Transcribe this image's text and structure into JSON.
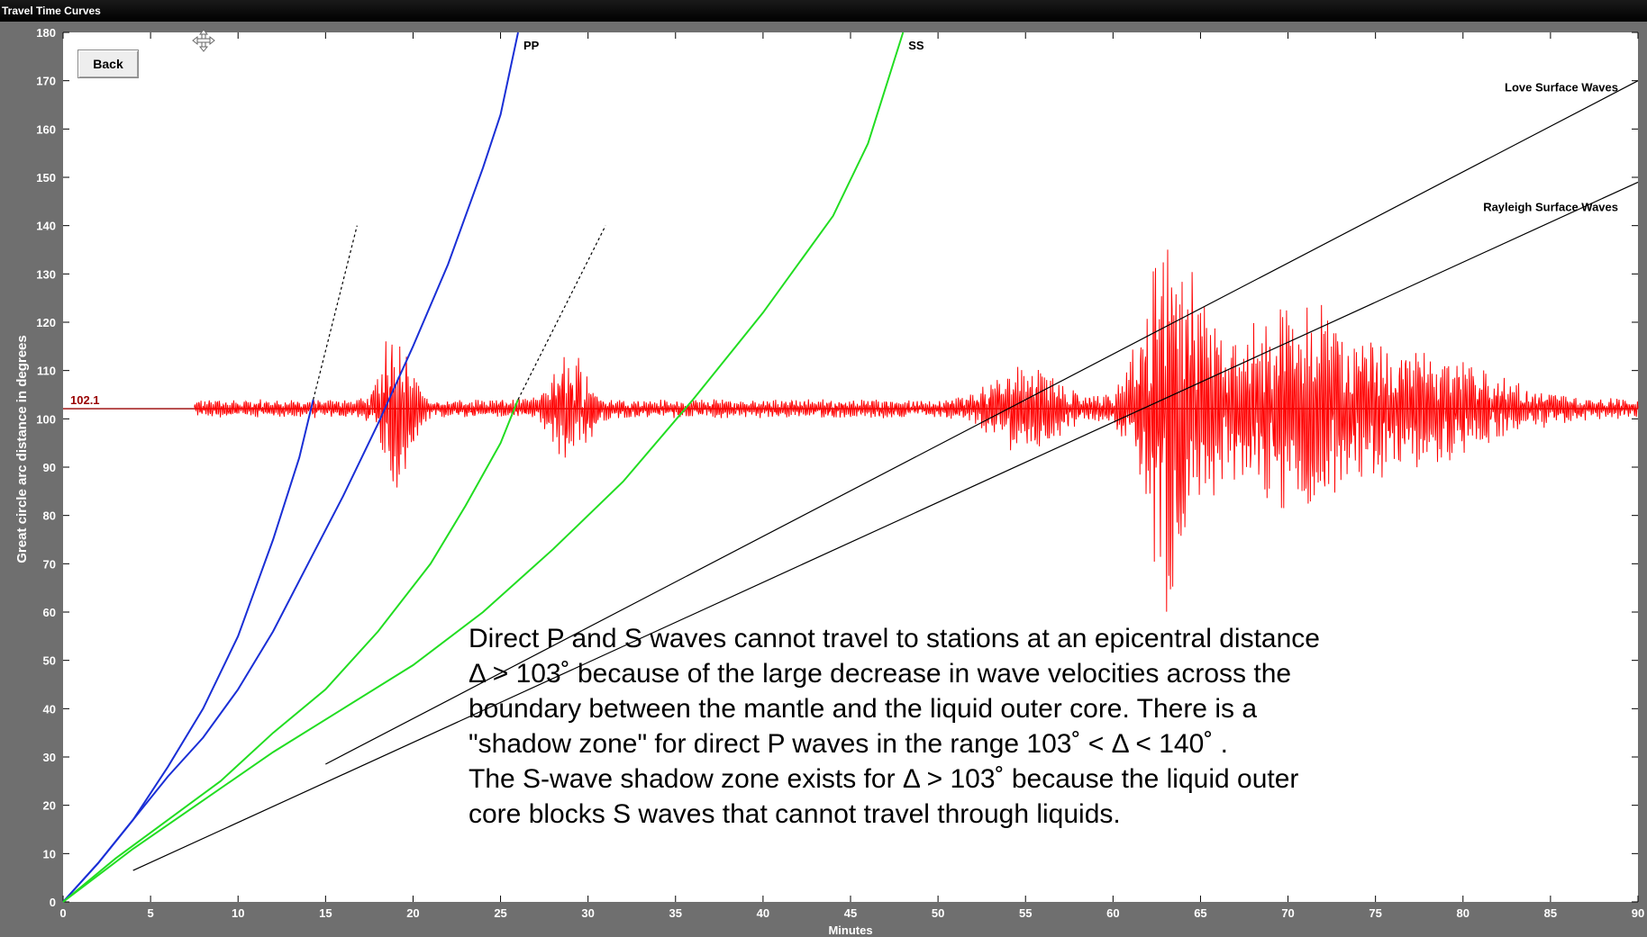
{
  "window": {
    "title": "Travel Time Curves"
  },
  "toolbar": {
    "back_label": "Back"
  },
  "icons": {
    "move": "move-icon"
  },
  "annotation": {
    "lines": [
      "Direct P and S waves cannot travel to stations at an epicentral distance",
      "Δ > 103˚   because of the large decrease in wave velocities across the",
      "boundary between the mantle and the liquid outer core. There is a",
      "\"shadow zone\" for direct P waves in the range 103˚   < Δ < 140˚  .",
      "The S-wave shadow zone exists for Δ > 103˚   because the liquid outer",
      "core blocks S waves that cannot travel through liquids."
    ]
  },
  "colors": {
    "p_waves": "#1a2fd6",
    "s_waves": "#22dd22",
    "surface_waves": "#000000",
    "seismogram": "#ff0000",
    "station_line": "#990000",
    "frame": "#6f6f6f"
  },
  "chart_data": {
    "type": "line",
    "title": "",
    "xlabel": "Minutes",
    "ylabel": "Great circle arc distance in degrees",
    "xlim": [
      0,
      90
    ],
    "ylim": [
      0,
      180
    ],
    "xticks": [
      "0",
      "5",
      "10",
      "15",
      "20",
      "25",
      "30",
      "35",
      "40",
      "45",
      "50",
      "55",
      "60",
      "65",
      "70",
      "75",
      "80",
      "85",
      "90"
    ],
    "yticks": [
      "0",
      "10",
      "20",
      "30",
      "40",
      "50",
      "60",
      "70",
      "80",
      "90",
      "100",
      "110",
      "120",
      "130",
      "140",
      "150",
      "160",
      "170",
      "180"
    ],
    "station": {
      "distance_label": "102.1",
      "distance": 102.1
    },
    "series": [
      {
        "name": "",
        "kind": "P",
        "points": [
          [
            0,
            0
          ],
          [
            2,
            8
          ],
          [
            4,
            17
          ],
          [
            6,
            28
          ],
          [
            8,
            40
          ],
          [
            10,
            55
          ],
          [
            12,
            75
          ],
          [
            13.5,
            92
          ],
          [
            14.3,
            104
          ]
        ]
      },
      {
        "name": "PP",
        "kind": "P",
        "points": [
          [
            0,
            0
          ],
          [
            2,
            8
          ],
          [
            4,
            17
          ],
          [
            6,
            26
          ],
          [
            8,
            34
          ],
          [
            10,
            44
          ],
          [
            12,
            56
          ],
          [
            14,
            70
          ],
          [
            16,
            84
          ],
          [
            18,
            99
          ],
          [
            20,
            115
          ],
          [
            22,
            132
          ],
          [
            24,
            152
          ],
          [
            25,
            163
          ],
          [
            26,
            180
          ]
        ]
      },
      {
        "name": "",
        "kind": "S",
        "points": [
          [
            0,
            0
          ],
          [
            3,
            9
          ],
          [
            6,
            17
          ],
          [
            9,
            25
          ],
          [
            12,
            35
          ],
          [
            15,
            44
          ],
          [
            18,
            56
          ],
          [
            21,
            70
          ],
          [
            23,
            82
          ],
          [
            25,
            95
          ],
          [
            26,
            104
          ]
        ]
      },
      {
        "name": "SS",
        "kind": "S",
        "points": [
          [
            0,
            0
          ],
          [
            4,
            11
          ],
          [
            8,
            21
          ],
          [
            12,
            31
          ],
          [
            16,
            40
          ],
          [
            20,
            49
          ],
          [
            24,
            60
          ],
          [
            28,
            73
          ],
          [
            32,
            87
          ],
          [
            36,
            104
          ],
          [
            40,
            122
          ],
          [
            44,
            142
          ],
          [
            46,
            157
          ],
          [
            48,
            180
          ]
        ]
      },
      {
        "name": "Love Surface Waves",
        "kind": "surface",
        "points": [
          [
            15,
            28.5
          ],
          [
            90,
            170
          ]
        ]
      },
      {
        "name": "Rayleigh Surface Waves",
        "kind": "surface",
        "points": [
          [
            4,
            6.5
          ],
          [
            90,
            149
          ]
        ]
      },
      {
        "name": "",
        "kind": "dotted",
        "points": [
          [
            14.3,
            104
          ],
          [
            16.8,
            140
          ]
        ]
      },
      {
        "name": "",
        "kind": "dotted",
        "points": [
          [
            26,
            104
          ],
          [
            31,
            140
          ]
        ]
      }
    ],
    "seismogram": {
      "t_start": 7.5,
      "t_end": 90,
      "bursts": [
        {
          "t": 19,
          "amp": 15,
          "width": 1.0
        },
        {
          "t": 29,
          "amp": 9,
          "width": 1.2
        },
        {
          "t": 55,
          "amp": 6,
          "width": 2.5
        },
        {
          "t": 63.5,
          "amp": 34,
          "width": 2.0
        },
        {
          "t": 70,
          "amp": 15,
          "width": 4.0
        },
        {
          "t": 77,
          "amp": 8,
          "width": 6.0
        }
      ]
    }
  }
}
